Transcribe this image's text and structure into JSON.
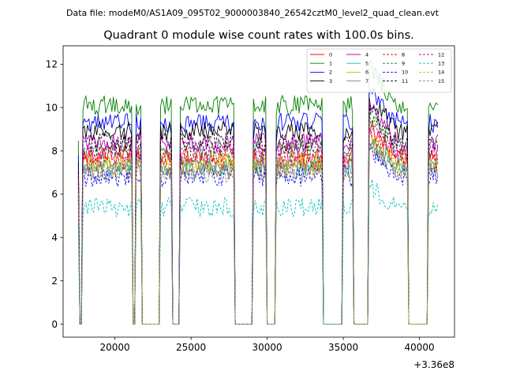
{
  "figure": {
    "suptitle": "Data file: modeM0/AS1A09_095T02_9000003840_26542cztM0_level2_quad_clean.evt",
    "title": "Quadrant 0 module wise count rates with 100.0s bins.",
    "x_offset_label": "+3.36e8"
  },
  "chart_data": {
    "type": "line",
    "title": "Quadrant 0 module wise count rates with 100.0s bins.",
    "xlabel": "",
    "ylabel": "",
    "x_offset": 336000000,
    "xlim": [
      16600,
      42300
    ],
    "ylim": [
      -0.6,
      12.85
    ],
    "xticks": [
      20000,
      25000,
      30000,
      35000,
      40000
    ],
    "xtick_labels": [
      "20000",
      "25000",
      "30000",
      "35000",
      "40000"
    ],
    "yticks": [
      0,
      2,
      4,
      6,
      8,
      10,
      12
    ],
    "ytick_labels": [
      "0",
      "2",
      "4",
      "6",
      "8",
      "10",
      "12"
    ],
    "bin_seconds": 100,
    "x_start": 17600,
    "x_step": 100,
    "legend_position": "top-right",
    "legend_columns": 4,
    "on_intervals": [
      {
        "start": 17900,
        "end": 21100
      },
      {
        "start": 21400,
        "end": 21700
      },
      {
        "start": 23000,
        "end": 23700
      },
      {
        "start": 24300,
        "end": 27800
      },
      {
        "start": 29100,
        "end": 29900
      },
      {
        "start": 30600,
        "end": 33600
      },
      {
        "start": 35000,
        "end": 35600
      },
      {
        "start": 36700,
        "end": 39200
      },
      {
        "start": 40600,
        "end": 41200
      }
    ],
    "trace_points": [
      {
        "x": 17600,
        "y": 6.7
      },
      {
        "x": 17800,
        "y": 0
      }
    ],
    "series": [
      {
        "name": "0",
        "color": "#ff0000",
        "style": "solid",
        "level": 7.8
      },
      {
        "name": "1",
        "color": "#008000",
        "style": "solid",
        "level": 10.1
      },
      {
        "name": "2",
        "color": "#0000ff",
        "style": "solid",
        "level": 9.3
      },
      {
        "name": "3",
        "color": "#000000",
        "style": "solid",
        "level": 8.9
      },
      {
        "name": "4",
        "color": "#bf00bf",
        "style": "solid",
        "level": 8.4
      },
      {
        "name": "5",
        "color": "#00bfbf",
        "style": "solid",
        "level": 7.3
      },
      {
        "name": "6",
        "color": "#bfbf00",
        "style": "solid",
        "level": 7.5
      },
      {
        "name": "7",
        "color": "#808080",
        "style": "solid",
        "level": 7.1
      },
      {
        "name": "8",
        "color": "#ff0000",
        "style": "dashed",
        "level": 7.5
      },
      {
        "name": "9",
        "color": "#008000",
        "style": "dashed",
        "level": 8.1
      },
      {
        "name": "10",
        "color": "#0000ff",
        "style": "dashed",
        "level": 6.8
      },
      {
        "name": "11",
        "color": "#000000",
        "style": "dashed",
        "level": 8.4
      },
      {
        "name": "12",
        "color": "#bf00bf",
        "style": "dashed",
        "level": 7.9
      },
      {
        "name": "13",
        "color": "#00bfbf",
        "style": "dashed",
        "level": 5.4
      },
      {
        "name": "14",
        "color": "#bfbf00",
        "style": "dashed",
        "level": 7.2
      },
      {
        "name": "15",
        "color": "#808080",
        "style": "dashed",
        "level": 7.0
      }
    ]
  }
}
